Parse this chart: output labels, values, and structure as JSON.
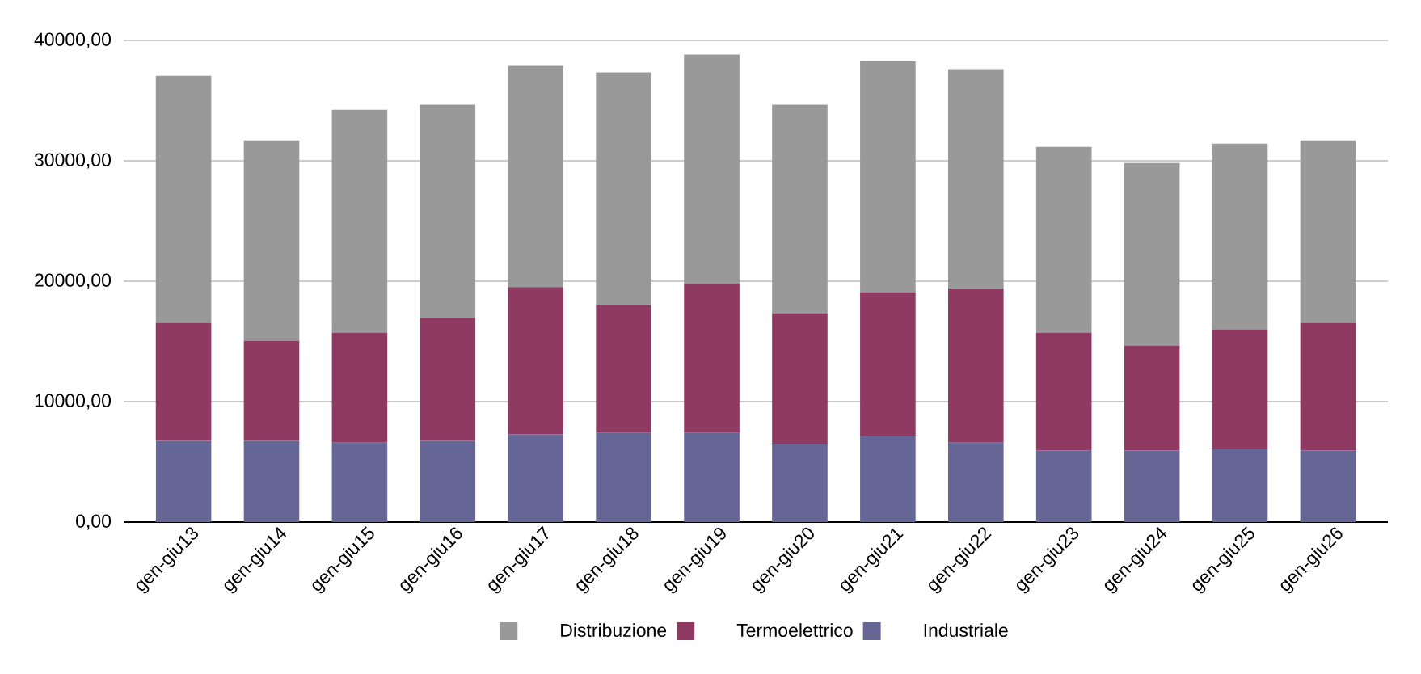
{
  "chart_data": {
    "type": "bar",
    "stacked": true,
    "categories": [
      "gen-giu13",
      "gen-giu14",
      "gen-giu15",
      "gen-giu16",
      "gen-giu17",
      "gen-giu18",
      "gen-giu19",
      "gen-giu20",
      "gen-giu21",
      "gen-giu22",
      "gen-giu23",
      "gen-giu24",
      "gen-giu25",
      "gen-giu26"
    ],
    "series": [
      {
        "name": "Industriale",
        "color": "#666696",
        "values": [
          6740,
          6740,
          6600,
          6740,
          7290,
          7400,
          7400,
          6490,
          7150,
          6600,
          5950,
          5950,
          6080,
          5950
        ]
      },
      {
        "name": "Termoelettrico",
        "color": "#8e3a62",
        "values": [
          9810,
          8330,
          9130,
          10220,
          12220,
          10630,
          12380,
          10850,
          11950,
          12800,
          9780,
          8710,
          9920,
          10600
        ]
      },
      {
        "name": "Distribuzione",
        "color": "#999999",
        "values": [
          20520,
          16630,
          18520,
          17700,
          18380,
          19310,
          19040,
          17320,
          19170,
          18220,
          15420,
          15150,
          15420,
          15150
        ]
      }
    ],
    "ylim": [
      0,
      40000
    ],
    "yticks": [
      {
        "value": 0,
        "label": "0,00"
      },
      {
        "value": 10000,
        "label": "10000,00"
      },
      {
        "value": 20000,
        "label": "20000,00"
      },
      {
        "value": 30000,
        "label": "30000,00"
      },
      {
        "value": 40000,
        "label": "40000,00"
      }
    ],
    "grid": "y",
    "legend": "bottom"
  }
}
